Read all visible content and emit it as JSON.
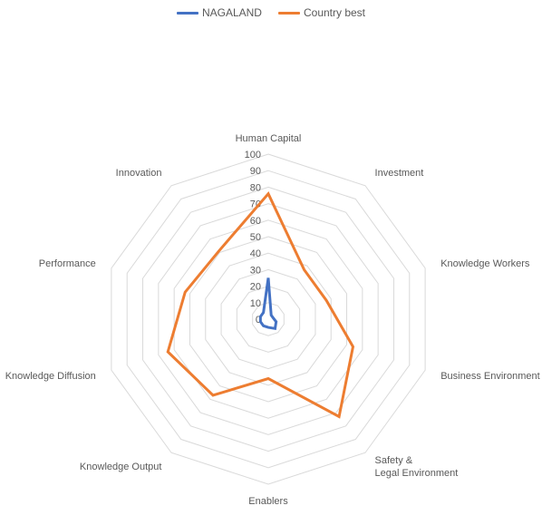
{
  "chart_data": {
    "type": "radar",
    "categories": [
      "Human Capital",
      "Investment",
      "Knowledge Workers",
      "Business Environment",
      "Safety & Legal Environment",
      "Enablers",
      "Knowledge Output",
      "Knowledge Diffusion",
      "Performance",
      "Innovation"
    ],
    "ticks": [
      "0",
      "10",
      "20",
      "30",
      "40",
      "50",
      "60",
      "70",
      "80",
      "90",
      "100"
    ],
    "rlim": [
      0,
      100
    ],
    "grid": true,
    "legend_position": "top",
    "series": [
      {
        "name": "NAGALAND",
        "color": "#4472c4",
        "values": [
          25,
          3,
          3,
          5,
          7,
          5,
          5,
          5,
          5,
          5
        ]
      },
      {
        "name": "Country best",
        "color": "#ed7d31",
        "values": [
          76,
          37,
          37,
          54,
          73,
          36,
          57,
          64,
          53,
          51
        ]
      }
    ]
  }
}
